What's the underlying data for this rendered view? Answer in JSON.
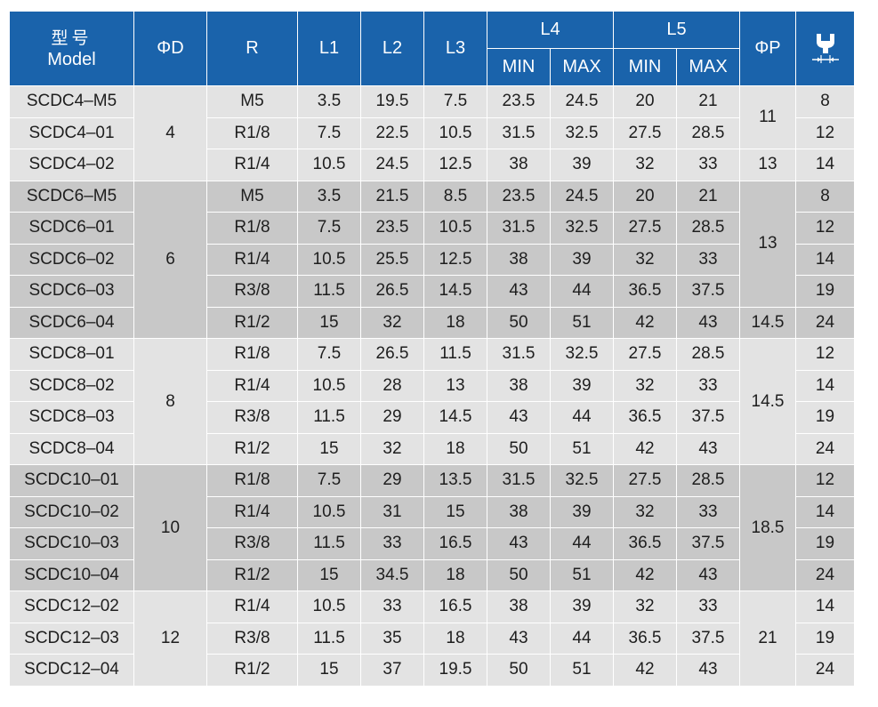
{
  "header": {
    "model_cn": "型号",
    "model_en": "Model",
    "phi_d": "ΦD",
    "r": "R",
    "l1": "L1",
    "l2": "L2",
    "l3": "L3",
    "l4": "L4",
    "l5": "L5",
    "phi_p": "ΦP",
    "min": "MIN",
    "max": "MAX",
    "wrench_icon": "wrench-size-icon"
  },
  "groups": [
    {
      "shade": "light",
      "d": "4",
      "rows": [
        {
          "model": "SCDC4–M5",
          "r": "M5",
          "l1": "3.5",
          "l2": "19.5",
          "l3": "7.5",
          "l4_min": "23.5",
          "l4_max": "24.5",
          "l5_min": "20",
          "l5_max": "21",
          "w": "8"
        },
        {
          "model": "SCDC4–01",
          "r": "R1/8",
          "l1": "7.5",
          "l2": "22.5",
          "l3": "10.5",
          "l4_min": "31.5",
          "l4_max": "32.5",
          "l5_min": "27.5",
          "l5_max": "28.5",
          "w": "12"
        },
        {
          "model": "SCDC4–02",
          "r": "R1/4",
          "l1": "10.5",
          "l2": "24.5",
          "l3": "12.5",
          "l4_min": "38",
          "l4_max": "39",
          "l5_min": "32",
          "l5_max": "33",
          "w": "14"
        }
      ],
      "p": [
        {
          "value": "11",
          "span": 2
        },
        {
          "value": "13",
          "span": 1
        }
      ]
    },
    {
      "shade": "dark",
      "d": "6",
      "rows": [
        {
          "model": "SCDC6–M5",
          "r": "M5",
          "l1": "3.5",
          "l2": "21.5",
          "l3": "8.5",
          "l4_min": "23.5",
          "l4_max": "24.5",
          "l5_min": "20",
          "l5_max": "21",
          "w": "8"
        },
        {
          "model": "SCDC6–01",
          "r": "R1/8",
          "l1": "7.5",
          "l2": "23.5",
          "l3": "10.5",
          "l4_min": "31.5",
          "l4_max": "32.5",
          "l5_min": "27.5",
          "l5_max": "28.5",
          "w": "12"
        },
        {
          "model": "SCDC6–02",
          "r": "R1/4",
          "l1": "10.5",
          "l2": "25.5",
          "l3": "12.5",
          "l4_min": "38",
          "l4_max": "39",
          "l5_min": "32",
          "l5_max": "33",
          "w": "14"
        },
        {
          "model": "SCDC6–03",
          "r": "R3/8",
          "l1": "11.5",
          "l2": "26.5",
          "l3": "14.5",
          "l4_min": "43",
          "l4_max": "44",
          "l5_min": "36.5",
          "l5_max": "37.5",
          "w": "19"
        },
        {
          "model": "SCDC6–04",
          "r": "R1/2",
          "l1": "15",
          "l2": "32",
          "l3": "18",
          "l4_min": "50",
          "l4_max": "51",
          "l5_min": "42",
          "l5_max": "43",
          "w": "24"
        }
      ],
      "p": [
        {
          "value": "13",
          "span": 4
        },
        {
          "value": "14.5",
          "span": 1
        }
      ]
    },
    {
      "shade": "light",
      "d": "8",
      "rows": [
        {
          "model": "SCDC8–01",
          "r": "R1/8",
          "l1": "7.5",
          "l2": "26.5",
          "l3": "11.5",
          "l4_min": "31.5",
          "l4_max": "32.5",
          "l5_min": "27.5",
          "l5_max": "28.5",
          "w": "12"
        },
        {
          "model": "SCDC8–02",
          "r": "R1/4",
          "l1": "10.5",
          "l2": "28",
          "l3": "13",
          "l4_min": "38",
          "l4_max": "39",
          "l5_min": "32",
          "l5_max": "33",
          "w": "14"
        },
        {
          "model": "SCDC8–03",
          "r": "R3/8",
          "l1": "11.5",
          "l2": "29",
          "l3": "14.5",
          "l4_min": "43",
          "l4_max": "44",
          "l5_min": "36.5",
          "l5_max": "37.5",
          "w": "19"
        },
        {
          "model": "SCDC8–04",
          "r": "R1/2",
          "l1": "15",
          "l2": "32",
          "l3": "18",
          "l4_min": "50",
          "l4_max": "51",
          "l5_min": "42",
          "l5_max": "43",
          "w": "24"
        }
      ],
      "p": [
        {
          "value": "14.5",
          "span": 4
        }
      ]
    },
    {
      "shade": "dark",
      "d": "10",
      "rows": [
        {
          "model": "SCDC10–01",
          "r": "R1/8",
          "l1": "7.5",
          "l2": "29",
          "l3": "13.5",
          "l4_min": "31.5",
          "l4_max": "32.5",
          "l5_min": "27.5",
          "l5_max": "28.5",
          "w": "12"
        },
        {
          "model": "SCDC10–02",
          "r": "R1/4",
          "l1": "10.5",
          "l2": "31",
          "l3": "15",
          "l4_min": "38",
          "l4_max": "39",
          "l5_min": "32",
          "l5_max": "33",
          "w": "14"
        },
        {
          "model": "SCDC10–03",
          "r": "R3/8",
          "l1": "11.5",
          "l2": "33",
          "l3": "16.5",
          "l4_min": "43",
          "l4_max": "44",
          "l5_min": "36.5",
          "l5_max": "37.5",
          "w": "19"
        },
        {
          "model": "SCDC10–04",
          "r": "R1/2",
          "l1": "15",
          "l2": "34.5",
          "l3": "18",
          "l4_min": "50",
          "l4_max": "51",
          "l5_min": "42",
          "l5_max": "43",
          "w": "24"
        }
      ],
      "p": [
        {
          "value": "18.5",
          "span": 4
        }
      ]
    },
    {
      "shade": "light",
      "d": "12",
      "rows": [
        {
          "model": "SCDC12–02",
          "r": "R1/4",
          "l1": "10.5",
          "l2": "33",
          "l3": "16.5",
          "l4_min": "38",
          "l4_max": "39",
          "l5_min": "32",
          "l5_max": "33",
          "w": "14"
        },
        {
          "model": "SCDC12–03",
          "r": "R3/8",
          "l1": "11.5",
          "l2": "35",
          "l3": "18",
          "l4_min": "43",
          "l4_max": "44",
          "l5_min": "36.5",
          "l5_max": "37.5",
          "w": "19"
        },
        {
          "model": "SCDC12–04",
          "r": "R1/2",
          "l1": "15",
          "l2": "37",
          "l3": "19.5",
          "l4_min": "50",
          "l4_max": "51",
          "l5_min": "42",
          "l5_max": "43",
          "w": "24"
        }
      ],
      "p": [
        {
          "value": "21",
          "span": 3
        }
      ]
    }
  ]
}
